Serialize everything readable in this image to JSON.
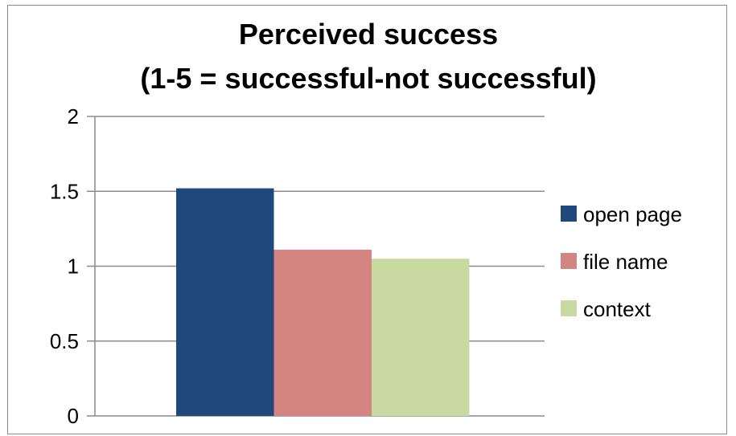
{
  "chart_data": {
    "type": "bar",
    "title_lines": [
      "Perceived success",
      "(1-5 = successful-not successful)"
    ],
    "categories": [
      ""
    ],
    "series": [
      {
        "name": "open page",
        "values": [
          1.52
        ],
        "color": "#1f497d"
      },
      {
        "name": "file name",
        "values": [
          1.11
        ],
        "color": "#d48481"
      },
      {
        "name": "context",
        "values": [
          1.05
        ],
        "color": "#c9d9a2"
      }
    ],
    "ylim": [
      0,
      2
    ],
    "yticks": [
      0,
      0.5,
      1,
      1.5,
      2
    ],
    "ytick_labels": [
      "0",
      "0.5",
      "1",
      "1.5",
      "2"
    ],
    "grid": true,
    "legend_position": "right"
  }
}
